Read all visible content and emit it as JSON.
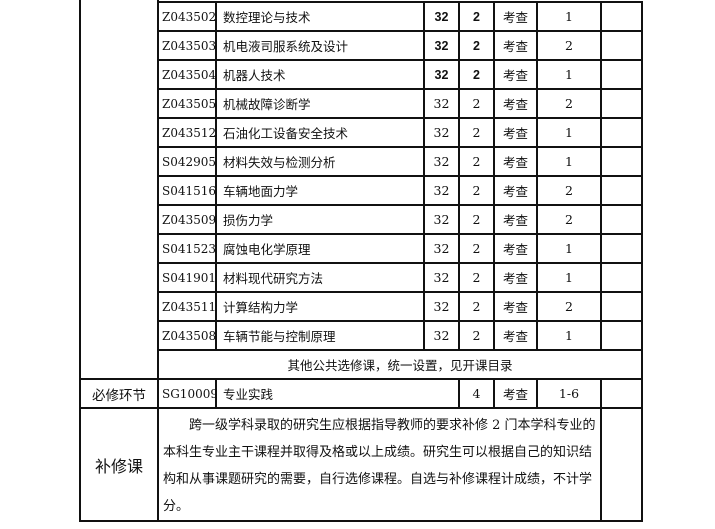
{
  "courses": [
    {
      "code": "Z043502",
      "name": "数控理论与技术",
      "hours": "32",
      "credits": "2",
      "exam": "考查",
      "semester": "1",
      "bold": true
    },
    {
      "code": "Z043503",
      "name": "机电液司服系统及设计",
      "hours": "32",
      "credits": "2",
      "exam": "考查",
      "semester": "2",
      "bold": true
    },
    {
      "code": "Z043504",
      "name": "机器人技术",
      "hours": "32",
      "credits": "2",
      "exam": "考查",
      "semester": "1",
      "bold": true
    },
    {
      "code": "Z043505",
      "name": "机械故障诊断学",
      "hours": "32",
      "credits": "2",
      "exam": "考查",
      "semester": "2"
    },
    {
      "code": "Z043512",
      "name": "石油化工设备安全技术",
      "hours": "32",
      "credits": "2",
      "exam": "考查",
      "semester": "1"
    },
    {
      "code": "S042905",
      "name": "材料失效与检测分析",
      "hours": "32",
      "credits": "2",
      "exam": "考查",
      "semester": "1"
    },
    {
      "code": "S041516",
      "name": "车辆地面力学",
      "hours": "32",
      "credits": "2",
      "exam": "考查",
      "semester": "2"
    },
    {
      "code": "Z043509",
      "name": "损伤力学",
      "hours": "32",
      "credits": "2",
      "exam": "考查",
      "semester": "2"
    },
    {
      "code": "S041523",
      "name": "腐蚀电化学原理",
      "hours": "32",
      "credits": "2",
      "exam": "考查",
      "semester": "1"
    },
    {
      "code": "S041901",
      "name": "材料现代研究方法",
      "hours": "32",
      "credits": "2",
      "exam": "考查",
      "semester": "1"
    },
    {
      "code": "Z043511",
      "name": "计算结构力学",
      "hours": "32",
      "credits": "2",
      "exam": "考查",
      "semester": "2"
    },
    {
      "code": "Z043508",
      "name": "车辆节能与控制原理",
      "hours": "32",
      "credits": "2",
      "exam": "考查",
      "semester": "1"
    }
  ],
  "public_electives_note": "其他公共选修课，统一设置，见开课目录",
  "required": {
    "category": "必修环节",
    "code": "SG10009",
    "name": "专业实践",
    "credits": "4",
    "exam": "考查",
    "semester": "1-6"
  },
  "remedial": {
    "category": "补修课",
    "text": "　　跨一级学科录取的研究生应根据指导教师的要求补修 2 门本学科专业的本科生专业主干课程并取得及格或以上成绩。研究生可以根据自己的知识结构和从事课题研究的需要，自行选修课程。自选与补修课程计成绩，不计学分。"
  }
}
